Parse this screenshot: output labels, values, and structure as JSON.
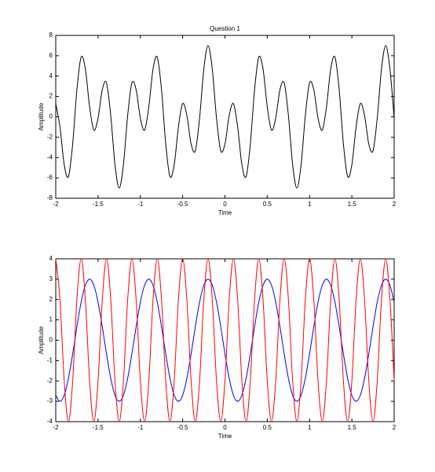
{
  "chart_data": [
    {
      "type": "line",
      "title": "Question 1",
      "xlabel": "Time",
      "ylabel": "Amplitude",
      "x": [
        -2,
        -1.95,
        -1.9,
        -1.85,
        -1.8,
        -1.75,
        -1.7,
        -1.65,
        -1.6,
        -1.55,
        -1.5,
        -1.45,
        -1.4,
        -1.35,
        -1.3,
        -1.25,
        -1.2,
        -1.15,
        -1.1,
        -1.05,
        -1,
        -0.95,
        -0.9,
        -0.85,
        -0.8,
        -0.75,
        -0.7,
        -0.65,
        -0.6,
        -0.55,
        -0.5,
        -0.45,
        -0.4,
        -0.35,
        -0.3,
        -0.25,
        -0.2,
        -0.15,
        -0.1,
        -0.05,
        0,
        0.05,
        0.1,
        0.15,
        0.2,
        0.25,
        0.3,
        0.35,
        0.4,
        0.45,
        0.5,
        0.55,
        0.6,
        0.65,
        0.7,
        0.75,
        0.8,
        0.85,
        0.9,
        0.95,
        1,
        1.05,
        1.1,
        1.15,
        1.2,
        1.25,
        1.3,
        1.35,
        1.4,
        1.45,
        1.5,
        1.55,
        1.6,
        1.65,
        1.7,
        1.75,
        1.8,
        1.85,
        1.9,
        1.95,
        2
      ],
      "series": [
        {
          "color": "#000000",
          "values": [
            1.3,
            -1,
            -4.7,
            -5.87,
            -2.67,
            2.67,
            5.87,
            4.7,
            1,
            -1.3,
            -0.13,
            2.67,
            3.33,
            0.13,
            -4.7,
            -7,
            -4.7,
            0.13,
            3.33,
            2.67,
            -0.13,
            -1.3,
            1,
            4.7,
            5.87,
            2.67,
            -2.67,
            -5.87,
            -4.7,
            -1,
            1.3,
            0.13,
            -2.67,
            -3.33,
            -0.13,
            4.7,
            7,
            4.7,
            -0.13,
            -3.33,
            -2.67,
            0.13,
            1.3,
            -1,
            -4.7,
            -5.87,
            -2.67,
            2.67,
            5.87,
            4.7,
            1,
            -1.3,
            -0.13,
            2.67,
            3.33,
            0.13,
            -4.7,
            -7,
            -4.7,
            0.13,
            3.33,
            2.67,
            -0.13,
            -1.3,
            1,
            4.7,
            5.87,
            2.67,
            -2.67,
            -5.87,
            -4.7,
            -1,
            1.3,
            0.13,
            -2.67,
            -3.33,
            -0.13,
            4.7,
            7,
            4.7,
            -0.13
          ]
        }
      ],
      "xlim": [
        -2,
        2
      ],
      "xticks": [
        -2,
        -1.5,
        -1,
        -0.5,
        0,
        0.5,
        1,
        1.5,
        2
      ],
      "ylim": [
        -8,
        8
      ],
      "yticks": [
        -8,
        -6,
        -4,
        -2,
        0,
        2,
        4,
        6,
        8
      ]
    },
    {
      "type": "line",
      "xlabel": "Time",
      "ylabel": "Amplitude",
      "x": [
        -2,
        -1.95,
        -1.9,
        -1.85,
        -1.8,
        -1.75,
        -1.7,
        -1.65,
        -1.6,
        -1.55,
        -1.5,
        -1.45,
        -1.4,
        -1.35,
        -1.3,
        -1.25,
        -1.2,
        -1.15,
        -1.1,
        -1.05,
        -1,
        -0.95,
        -0.9,
        -0.85,
        -0.8,
        -0.75,
        -0.7,
        -0.65,
        -0.6,
        -0.55,
        -0.5,
        -0.45,
        -0.4,
        -0.35,
        -0.3,
        -0.25,
        -0.2,
        -0.15,
        -0.1,
        -0.05,
        0,
        0.05,
        0.1,
        0.15,
        0.2,
        0.25,
        0.3,
        0.35,
        0.4,
        0.45,
        0.5,
        0.55,
        0.6,
        0.65,
        0.7,
        0.75,
        0.8,
        0.85,
        0.9,
        0.95,
        1,
        1.05,
        1.1,
        1.15,
        1.2,
        1.25,
        1.3,
        1.35,
        1.4,
        1.45,
        1.5,
        1.55,
        1.6,
        1.65,
        1.7,
        1.75,
        1.8,
        1.85,
        1.9,
        1.95,
        2
      ],
      "series": [
        {
          "color": "#0000ff",
          "values": [
            -2.7,
            -3,
            -2.7,
            -1.87,
            -0.67,
            0.67,
            1.87,
            2.7,
            3,
            2.7,
            1.87,
            0.67,
            -0.67,
            -1.87,
            -2.7,
            -3,
            -2.7,
            -1.87,
            -0.67,
            0.67,
            1.87,
            2.7,
            3,
            2.7,
            1.87,
            0.67,
            -0.67,
            -1.87,
            -2.7,
            -3,
            -2.7,
            -1.87,
            -0.67,
            0.67,
            1.87,
            2.7,
            3,
            2.7,
            1.87,
            0.67,
            -0.67,
            -1.87,
            -2.7,
            -3,
            -2.7,
            -1.87,
            -0.67,
            0.67,
            1.87,
            2.7,
            3,
            2.7,
            1.87,
            0.67,
            -0.67,
            -1.87,
            -2.7,
            -3,
            -2.7,
            -1.87,
            -0.67,
            0.67,
            1.87,
            2.7,
            3,
            2.7,
            1.87,
            0.67,
            -0.67,
            -1.87,
            -2.7,
            -3,
            -2.7,
            -1.87,
            -0.67,
            0.67,
            1.87,
            2.7,
            3,
            2.7,
            1.87
          ]
        },
        {
          "color": "#ff0000",
          "values": [
            4,
            2,
            -2,
            -4,
            -2,
            2,
            4,
            2,
            -2,
            -4,
            -2,
            2,
            4,
            2,
            -2,
            -4,
            -2,
            2,
            4,
            2,
            -2,
            -4,
            -2,
            2,
            4,
            2,
            -2,
            -4,
            -2,
            2,
            4,
            2,
            -2,
            -4,
            -2,
            2,
            4,
            2,
            -2,
            -4,
            -2,
            2,
            4,
            2,
            -2,
            -4,
            -2,
            2,
            4,
            2,
            -2,
            -4,
            -2,
            2,
            4,
            2,
            -2,
            -4,
            -2,
            2,
            4,
            2,
            -2,
            -4,
            -2,
            2,
            4,
            2,
            -2,
            -4,
            -2,
            2,
            4,
            2,
            -2,
            -4,
            -2,
            2,
            4,
            2,
            -2
          ]
        }
      ],
      "xlim": [
        -2,
        2
      ],
      "xticks": [
        -2,
        -1.5,
        -1,
        -0.5,
        0,
        0.5,
        1,
        1.5,
        2
      ],
      "ylim": [
        -4,
        4
      ],
      "yticks": [
        -4,
        -3,
        -2,
        -1,
        0,
        1,
        2,
        3,
        4
      ]
    }
  ]
}
